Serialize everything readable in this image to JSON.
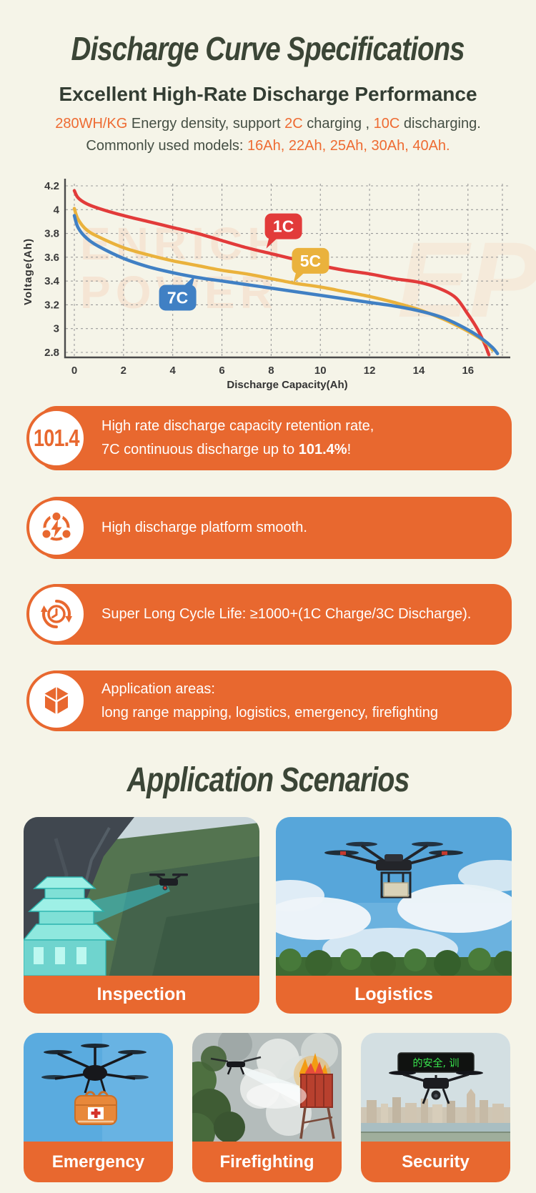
{
  "page": {
    "bg_color": "#f5f4e8",
    "accent_orange": "#e8682f",
    "title_color": "#3b4536"
  },
  "header": {
    "title": "Discharge Curve Specifications",
    "subtitle": "Excellent High-Rate Discharge Performance",
    "intro_line1": [
      {
        "t": "280WH/KG",
        "hl": true
      },
      {
        "t": " Energy density, support ",
        "hl": false
      },
      {
        "t": "2C",
        "hl": true
      },
      {
        "t": " charging , ",
        "hl": false
      },
      {
        "t": "10C",
        "hl": true
      },
      {
        "t": " discharging.",
        "hl": false
      }
    ],
    "intro_line2": [
      {
        "t": "Commonly used models: ",
        "hl": false
      },
      {
        "t": "16Ah, 22Ah, 25Ah, 30Ah, 40Ah.",
        "hl": true
      }
    ]
  },
  "chart_data": {
    "type": "line",
    "title": "",
    "xlabel": "Discharge Capacity(Ah)",
    "ylabel": "Voltage(Ah)",
    "xlim": [
      0,
      17.4
    ],
    "ylim": [
      2.8,
      4.2
    ],
    "xticks": [
      0,
      2,
      4,
      6,
      8,
      10,
      12,
      14,
      16
    ],
    "yticks": [
      4.2,
      4,
      3.8,
      3.6,
      3.4,
      3.2,
      3,
      2.8
    ],
    "grid": "dashed",
    "legend_position": "on-curve bubbles",
    "watermark_lines": [
      "ENRICH",
      "POWER"
    ],
    "watermark_logo": "EP",
    "series": [
      {
        "name": "1C",
        "color": "#e23b3a",
        "x": [
          0,
          0.15,
          0.5,
          1,
          2,
          3,
          4,
          5,
          6,
          7,
          8,
          9,
          10,
          11,
          12,
          13,
          14,
          14.8,
          15.5,
          16,
          16.4,
          16.7,
          16.85
        ],
        "y": [
          4.16,
          4.1,
          4.05,
          4.01,
          3.95,
          3.9,
          3.85,
          3.8,
          3.74,
          3.68,
          3.63,
          3.58,
          3.53,
          3.49,
          3.46,
          3.42,
          3.39,
          3.34,
          3.26,
          3.12,
          2.99,
          2.86,
          2.78
        ]
      },
      {
        "name": "5C",
        "color": "#eab23c",
        "x": [
          0,
          0.15,
          0.5,
          1,
          2,
          3,
          4,
          5,
          6,
          7,
          8,
          9,
          10,
          11,
          12,
          13,
          14,
          15,
          15.8,
          16.4,
          16.8,
          17.0
        ],
        "y": [
          4.01,
          3.92,
          3.83,
          3.77,
          3.68,
          3.62,
          3.57,
          3.53,
          3.49,
          3.46,
          3.42,
          3.38,
          3.35,
          3.31,
          3.27,
          3.22,
          3.16,
          3.08,
          3.0,
          2.93,
          2.87,
          2.82
        ]
      },
      {
        "name": "7C",
        "color": "#4080c4",
        "x": [
          0,
          0.15,
          0.5,
          1,
          2,
          3,
          4,
          5,
          6,
          7,
          8,
          9,
          10,
          11,
          12,
          13,
          14,
          15,
          16,
          16.6,
          17.0,
          17.2
        ],
        "y": [
          3.95,
          3.85,
          3.76,
          3.69,
          3.59,
          3.52,
          3.47,
          3.43,
          3.4,
          3.37,
          3.34,
          3.31,
          3.28,
          3.25,
          3.22,
          3.19,
          3.15,
          3.09,
          2.99,
          2.91,
          2.84,
          2.79
        ]
      }
    ],
    "labels": [
      {
        "text": "1C",
        "color": "#e23b3a",
        "x": 8.5,
        "y": 3.86,
        "tail": "bl"
      },
      {
        "text": "5C",
        "color": "#eab23c",
        "x": 9.6,
        "y": 3.57,
        "tail": "bl"
      },
      {
        "text": "7C",
        "color": "#4080c4",
        "x": 4.2,
        "y": 3.26,
        "tail": "tr"
      }
    ]
  },
  "features": [
    {
      "badge": "101.4",
      "lines": [
        [
          {
            "t": "High rate discharge capacity retention rate,"
          }
        ],
        [
          {
            "t": "7C continuous discharge up to "
          },
          {
            "t": "101.4%",
            "b": true
          },
          {
            "t": "!"
          }
        ]
      ]
    },
    {
      "lines": [
        [
          {
            "t": "High discharge platform smooth."
          }
        ]
      ]
    },
    {
      "lines": [
        [
          {
            "t": "Super Long Cycle Life: ≥1000+(1C Charge/3C Discharge)."
          }
        ]
      ]
    },
    {
      "lines": [
        [
          {
            "t": "Application areas:"
          }
        ],
        [
          {
            "t": "long range mapping, logistics, emergency, firefighting"
          }
        ]
      ]
    }
  ],
  "scenarios": {
    "title": "Application Scenarios",
    "led_text": "的安全, 训",
    "items": [
      {
        "label": "Inspection"
      },
      {
        "label": "Logistics"
      },
      {
        "label": "Emergency"
      },
      {
        "label": "Firefighting"
      },
      {
        "label": "Security"
      }
    ]
  }
}
